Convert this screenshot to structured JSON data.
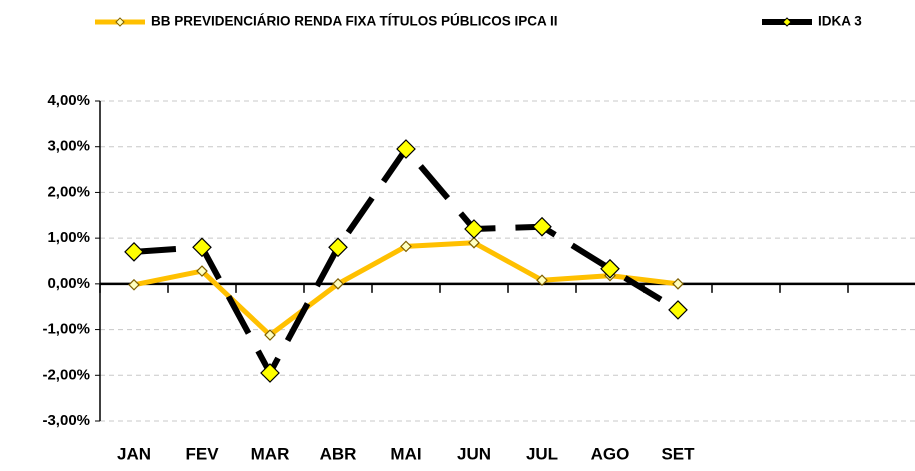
{
  "chart_data": {
    "type": "line",
    "categories": [
      "JAN",
      "FEV",
      "MAR",
      "ABR",
      "MAI",
      "JUN",
      "JUL",
      "AGO",
      "SET",
      null,
      null,
      null
    ],
    "series": [
      {
        "name": "BB PREVIDENCIÁRIO RENDA FIXA TÍTULOS PÚBLICOS IPCA II",
        "color": "#FFC000",
        "values": [
          -0.02,
          0.28,
          -1.12,
          0.0,
          0.82,
          0.9,
          0.08,
          0.18,
          0.0,
          null,
          null,
          null
        ]
      },
      {
        "name": "IDKA 3",
        "color": "#000000",
        "values": [
          0.7,
          0.8,
          -1.95,
          0.8,
          2.95,
          1.2,
          1.25,
          0.33,
          -0.57,
          null,
          null,
          null
        ]
      }
    ],
    "ylim": [
      -3,
      4
    ],
    "yticks": [
      {
        "value": -3,
        "label": "-3,00%"
      },
      {
        "value": -2,
        "label": "-2,00%"
      },
      {
        "value": -1,
        "label": "-1,00%"
      },
      {
        "value": 0,
        "label": "0,00%"
      },
      {
        "value": 1,
        "label": "1,00%"
      },
      {
        "value": 2,
        "label": "2,00%"
      },
      {
        "value": 3,
        "label": "3,00%"
      },
      {
        "value": 4,
        "label": "4,00%"
      }
    ],
    "grid": true
  }
}
